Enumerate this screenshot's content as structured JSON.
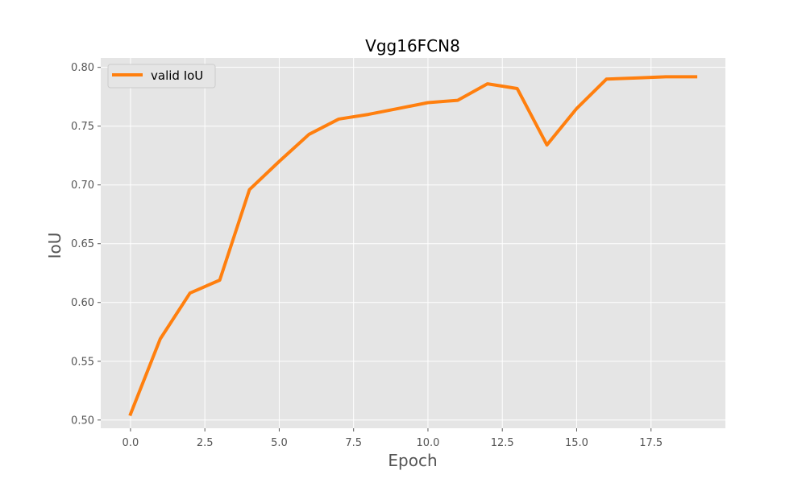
{
  "chart_data": {
    "type": "line",
    "title": "Vgg16FCN8",
    "xlabel": "Epoch",
    "ylabel": "IoU",
    "xlim": [
      -1.0,
      20.0
    ],
    "ylim": [
      0.493,
      0.808
    ],
    "xticks": [
      0.0,
      2.5,
      5.0,
      7.5,
      10.0,
      12.5,
      15.0,
      17.5
    ],
    "xtick_labels": [
      "0.0",
      "2.5",
      "5.0",
      "7.5",
      "10.0",
      "12.5",
      "15.0",
      "17.5"
    ],
    "yticks": [
      0.5,
      0.55,
      0.6,
      0.65,
      0.7,
      0.75,
      0.8
    ],
    "ytick_labels": [
      "0.50",
      "0.55",
      "0.60",
      "0.65",
      "0.70",
      "0.75",
      "0.80"
    ],
    "grid": true,
    "legend_position": "upper left",
    "background_color": "#e5e5e5",
    "grid_color": "#ffffff",
    "series": [
      {
        "name": "valid IoU",
        "color": "#ff7f0e",
        "x": [
          0,
          1,
          2,
          3,
          4,
          5,
          6,
          7,
          8,
          9,
          10,
          11,
          12,
          13,
          14,
          15,
          16,
          17,
          18,
          19
        ],
        "values": [
          0.505,
          0.569,
          0.608,
          0.619,
          0.696,
          0.72,
          0.743,
          0.756,
          0.76,
          0.765,
          0.77,
          0.772,
          0.786,
          0.782,
          0.734,
          0.765,
          0.79,
          0.791,
          0.792,
          0.792
        ]
      }
    ]
  }
}
